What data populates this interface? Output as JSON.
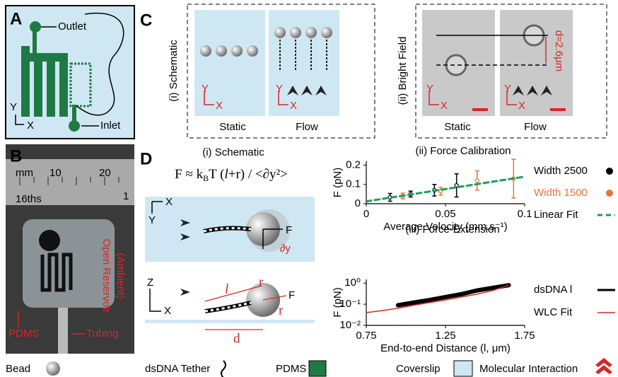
{
  "panel_a": {
    "letter": "A",
    "outlet": "Outlet",
    "inlet": "Inlet",
    "axis_y": "Y",
    "axis_x": "X"
  },
  "panel_b": {
    "letter": "B",
    "ruler_mm": "mm",
    "ruler_10": "10",
    "ruler_20": "20",
    "ruler_16ths": "16ths",
    "ruler_1": "1",
    "reservoir": "Open Reservoir",
    "ambient": "(Ambient)",
    "pdms": "PDMS",
    "tubing": "Tubing"
  },
  "panel_c": {
    "letter": "C",
    "schematic": {
      "label": "(i) Schematic",
      "panels": [
        "Static",
        "Flow"
      ],
      "axes": [
        [
          "Y",
          "X"
        ],
        [
          "Y",
          "X"
        ]
      ]
    },
    "bright_field": {
      "label": "(ii) Bright Field",
      "panels": [
        "Static",
        "Flow"
      ],
      "axes": [
        [
          "Y",
          "X"
        ],
        [
          "Y",
          "X"
        ]
      ],
      "distance": "d≈2.6μm"
    }
  },
  "panel_d": {
    "letter": "D",
    "schematic": {
      "title": "(i) Schematic",
      "formula": [
        "F ≈ k",
        "B",
        "T (",
        "l",
        "+r) / <∂y²>"
      ],
      "top": {
        "axis_x": "X",
        "axis_y": "Y",
        "force": "F",
        "deflection": "∂y"
      },
      "side": {
        "axis_z": "Z",
        "axis_x": "X",
        "length": "l",
        "radius": [
          "r",
          "r"
        ],
        "force": "F",
        "distance": "d"
      }
    }
  },
  "chart_data": [
    {
      "type": "scatter",
      "title": "(ii) Force Calibration",
      "x_label": "Average Velocity (mm.s⁻¹)",
      "y_label": "F (pN)",
      "xlim": [
        0,
        0.1
      ],
      "xticks": [
        0,
        0.05,
        0.1
      ],
      "ylim": [
        0,
        0.22
      ],
      "yticks": [
        0,
        0.1,
        0.2
      ],
      "series": [
        {
          "name": "Width 2500",
          "color": "#000000",
          "label_color": "#000000",
          "x": [
            0.015,
            0.028,
            0.043,
            0.057
          ],
          "values": [
            0.033,
            0.05,
            0.07,
            0.095
          ],
          "errors": [
            0.02,
            0.015,
            0.03,
            0.06
          ]
        },
        {
          "name": "Width 1500",
          "color": "#e8743b",
          "label_color": "#e8743b",
          "x": [
            0.023,
            0.047,
            0.07,
            0.093
          ],
          "values": [
            0.04,
            0.065,
            0.12,
            0.13
          ],
          "errors": [
            0.015,
            0.02,
            0.05,
            0.1
          ]
        },
        {
          "name": "Linear Fit",
          "color": "#1a9e5a",
          "label_color": "#000000",
          "x": [
            0,
            0.1
          ],
          "values": [
            0.012,
            0.14
          ],
          "dash": true,
          "line_width": 3
        }
      ]
    },
    {
      "type": "line",
      "title": "(iii) Force-Extension",
      "x_label": "End-to-end Distance (l, μm)",
      "y_label": "F (pN)",
      "yscale": "log",
      "xlim": [
        0.75,
        1.75
      ],
      "xticks": [
        0.75,
        1.25,
        1.75
      ],
      "ylim": [
        0.01,
        1.5
      ],
      "yticks": [
        {
          "value": 1,
          "label": "10⁰"
        },
        {
          "value": 0.1,
          "label": "10⁻¹"
        },
        {
          "value": 0.01,
          "label": "10⁻²"
        }
      ],
      "series": [
        {
          "name": "dsDNA l",
          "color": "#000000",
          "label_color": "#000000",
          "line_width": 6,
          "x": [
            0.95,
            1.05,
            1.15,
            1.25,
            1.35,
            1.45,
            1.55,
            1.65
          ],
          "values": [
            0.09,
            0.12,
            0.16,
            0.22,
            0.3,
            0.45,
            0.6,
            0.8
          ]
        },
        {
          "name": "WLC Fit",
          "color": "#d62728",
          "label_color": "#000000",
          "line_width": 1.5,
          "x": [
            0.75,
            0.85,
            0.95,
            1.05,
            1.15,
            1.25,
            1.35,
            1.45,
            1.55,
            1.65
          ],
          "values": [
            0.04,
            0.05,
            0.065,
            0.09,
            0.12,
            0.16,
            0.22,
            0.3,
            0.45,
            0.8
          ]
        }
      ]
    }
  ],
  "legend": [
    "Bead",
    "dsDNA Tether",
    "PDMS",
    "Coverslip",
    "Molecular Interaction"
  ]
}
